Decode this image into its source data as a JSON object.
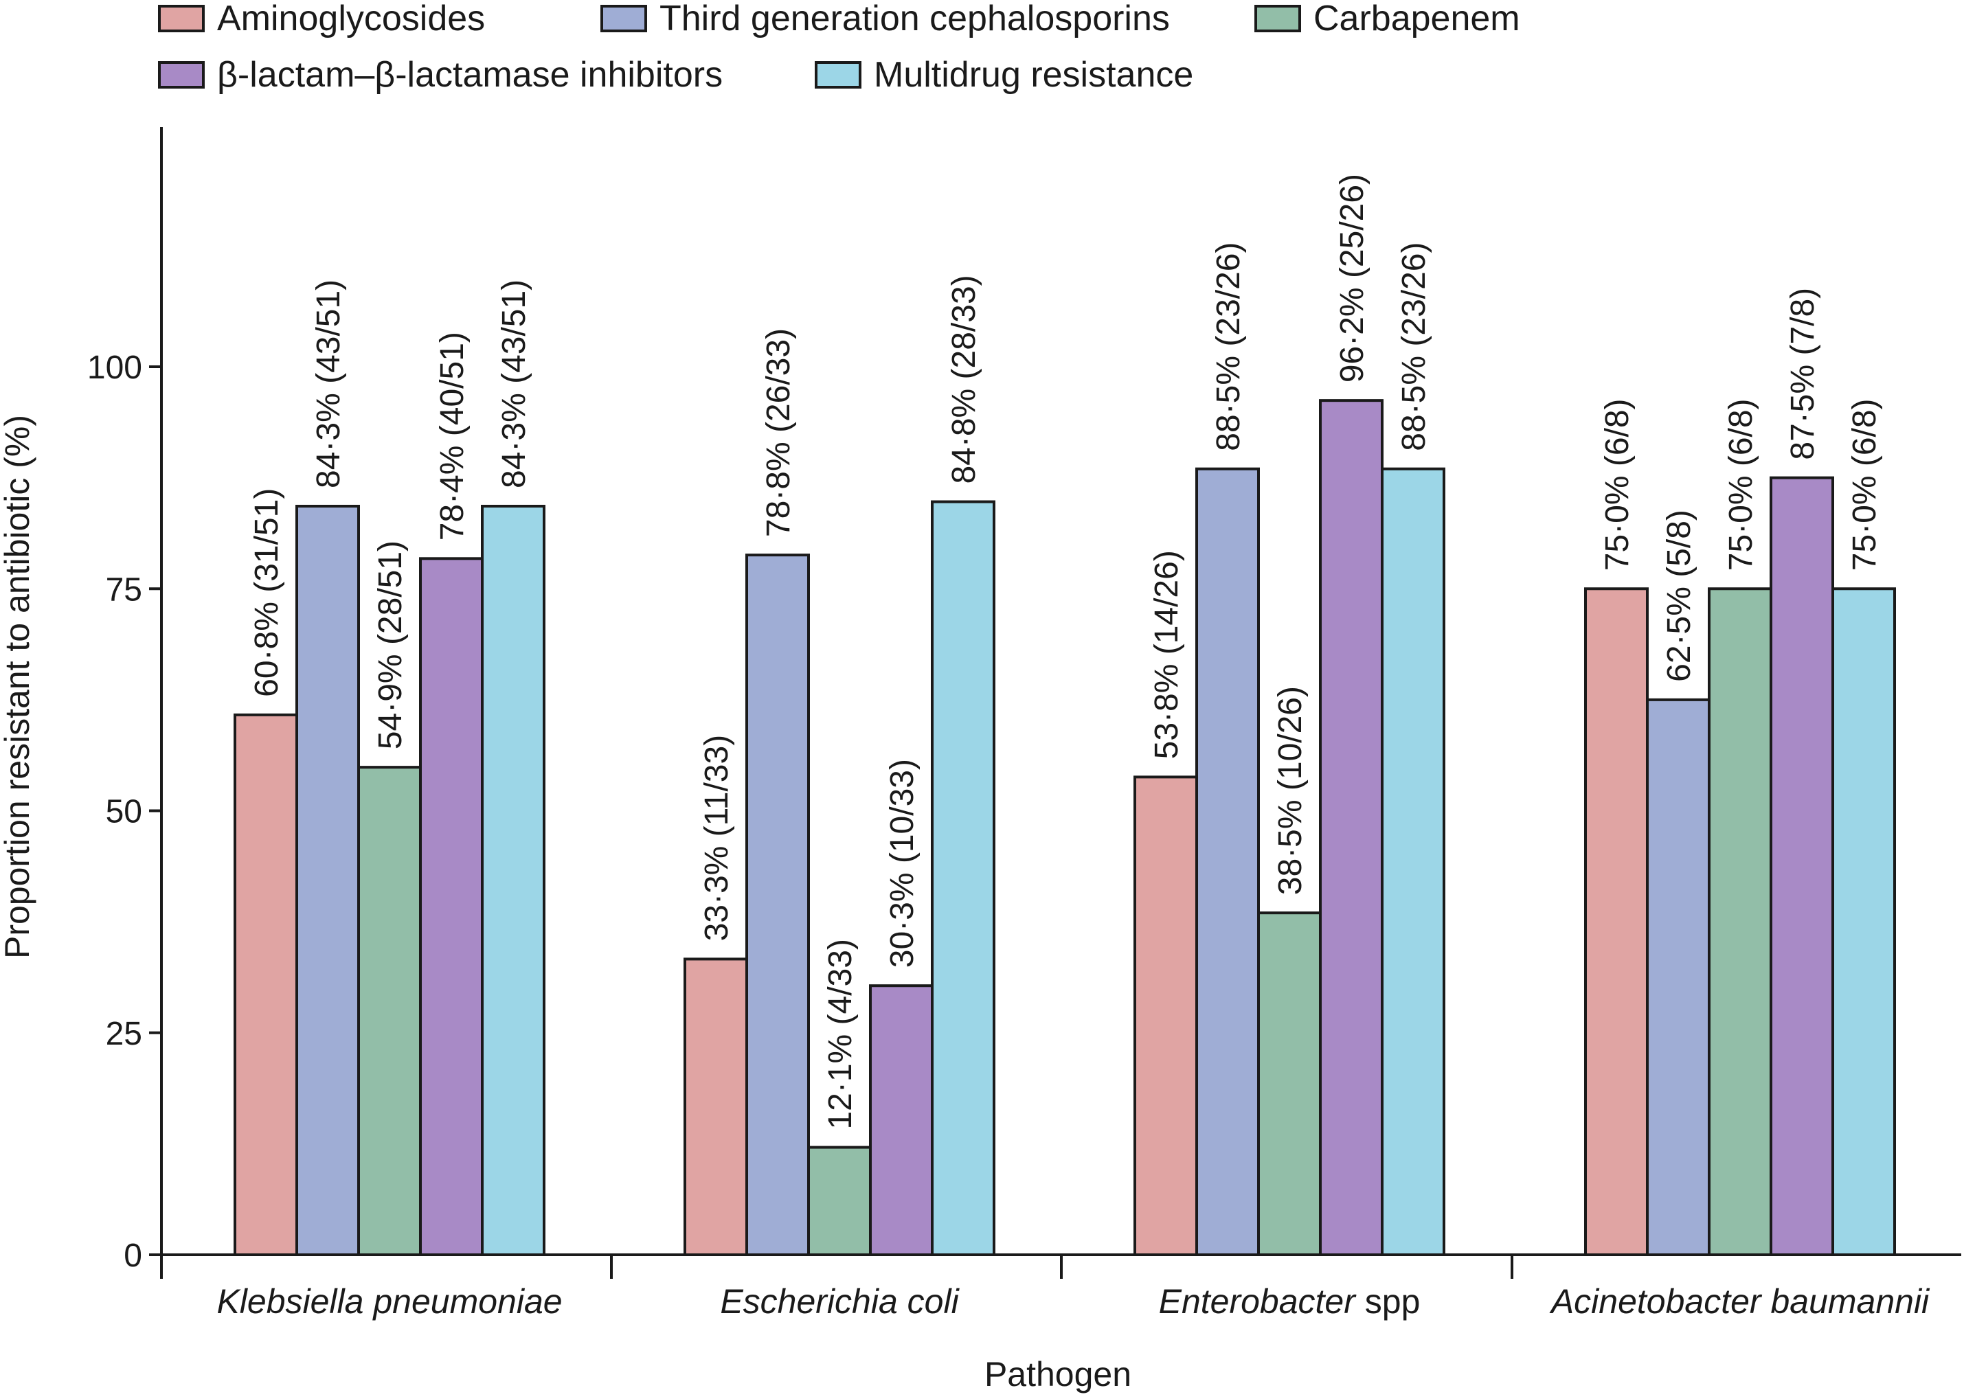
{
  "chart_data": {
    "type": "bar",
    "title": "",
    "xlabel": "Pathogen",
    "ylabel": "Proportion resistant to antibiotic (%)",
    "ylim": [
      0,
      125
    ],
    "yticks": [
      0,
      25,
      50,
      75,
      100
    ],
    "grid": false,
    "legend_position": "top-left",
    "categories": [
      "Klebsiella pneumoniae",
      "Escherichia coli",
      "Enterobacter",
      "Acinetobacter baumannii"
    ],
    "category_suffix": [
      "",
      "",
      " spp",
      ""
    ],
    "series": [
      {
        "name": "Aminoglycosides",
        "color": "#e0a4a3",
        "values": [
          60.8,
          33.3,
          53.8,
          75.0
        ],
        "labels": [
          "60·8% (31/51)",
          "33·3% (11/33)",
          "53·8% (14/26)",
          "75·0% (6/8)"
        ]
      },
      {
        "name": "Third generation cephalosporins",
        "color": "#9fadd5",
        "values": [
          84.3,
          78.8,
          88.5,
          62.5
        ],
        "labels": [
          "84·3% (43/51)",
          "78·8% (26/33)",
          "88·5% (23/26)",
          "62·5% (5/8)"
        ]
      },
      {
        "name": "Carbapenem",
        "color": "#92bea8",
        "values": [
          54.9,
          12.1,
          38.5,
          75.0
        ],
        "labels": [
          "54·9% (28/51)",
          "12·1% (4/33)",
          "38·5% (10/26)",
          "75·0% (6/8)"
        ]
      },
      {
        "name": "β-lactam–β-lactamase inhibitors",
        "color": "#a88ac6",
        "values": [
          78.4,
          30.3,
          96.2,
          87.5
        ],
        "labels": [
          "78·4% (40/51)",
          "30·3% (10/33)",
          "96·2% (25/26)",
          "87·5% (7/8)"
        ]
      },
      {
        "name": "Multidrug resistance",
        "color": "#9cd6e7",
        "values": [
          84.3,
          84.8,
          88.5,
          75.0
        ],
        "labels": [
          "84·3% (43/51)",
          "84·8% (28/33)",
          "88·5% (23/26)",
          "75·0% (6/8)"
        ]
      }
    ]
  }
}
